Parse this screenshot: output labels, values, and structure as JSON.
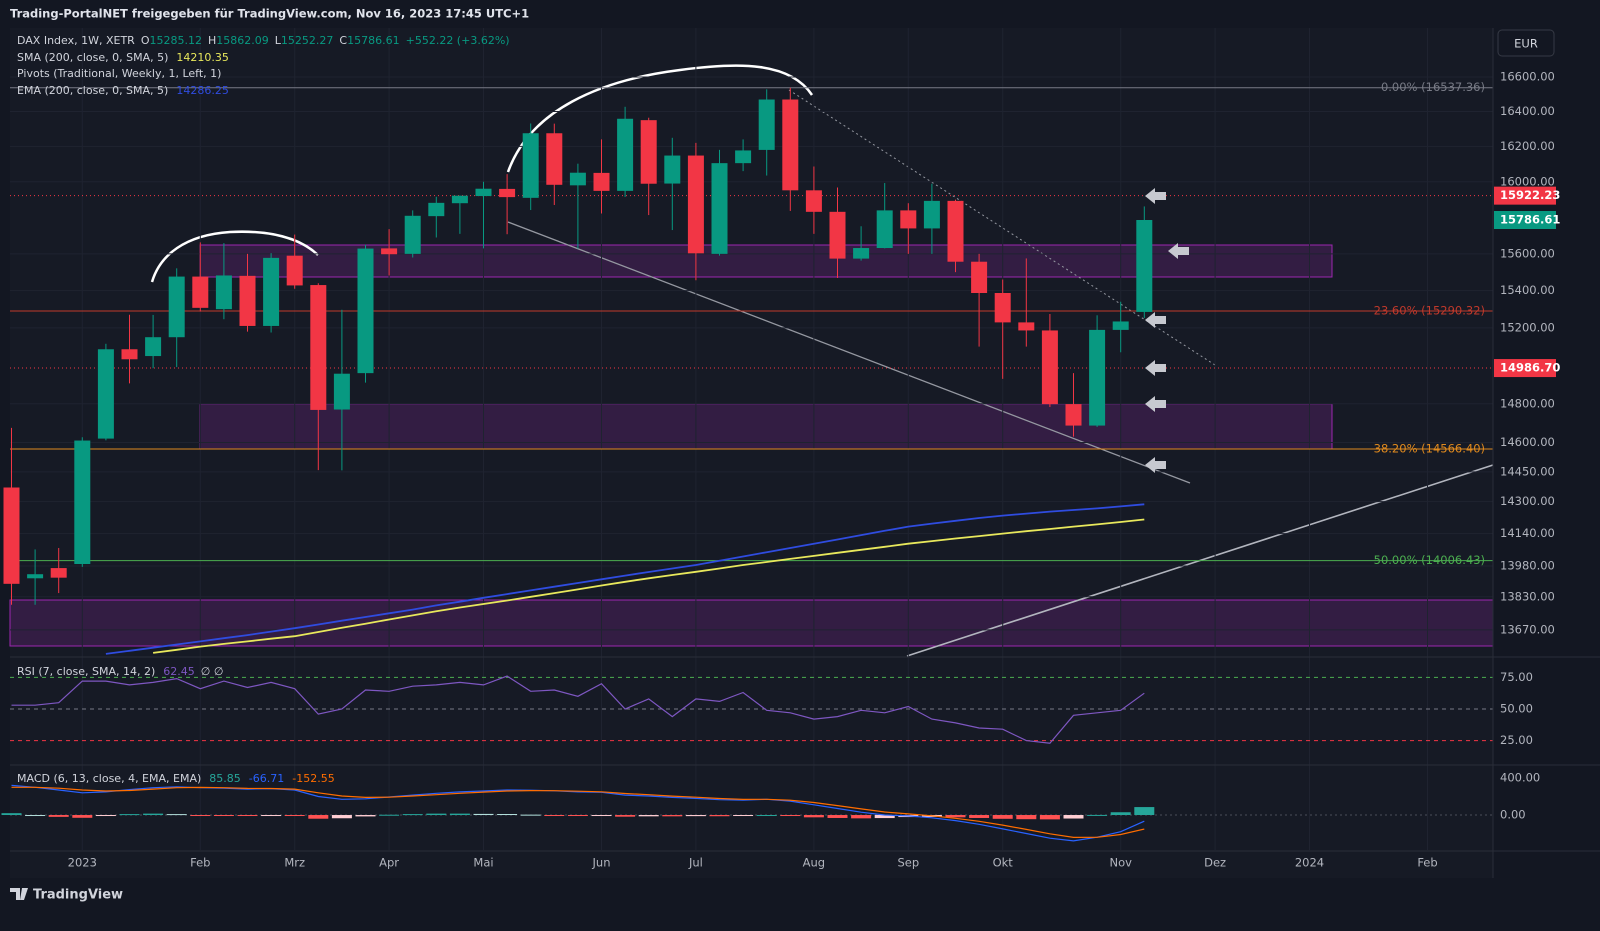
{
  "header": {
    "title": "Trading-PortalNET freigegeben für TradingView.com, Nov 16, 2023 17:45 UTC+1",
    "currency": "EUR",
    "footer": "TradingView"
  },
  "chart_data": {
    "type": "candlestick",
    "log_scale": true,
    "grid": true,
    "symbol": "DAX Index, 1W, XETR",
    "ohlc_labels": [
      "O",
      "H",
      "L",
      "C"
    ],
    "change": "+552.22 (+3.62%)",
    "pivots_label": "Pivots (Traditional, Weekly, 1, Left, 1)",
    "up_color": "#089981",
    "down_color": "#f23645",
    "ylim": [
      13550,
      16876
    ],
    "yticks": [
      {
        "value": 16600,
        "label": "16600.00"
      },
      {
        "value": 16400,
        "label": "16400.00"
      },
      {
        "value": 16200,
        "label": "16200.00"
      },
      {
        "value": 16000,
        "label": "16000.00"
      },
      {
        "value": 15600,
        "label": "15600.00"
      },
      {
        "value": 15400,
        "label": "15400.00"
      },
      {
        "value": 15200,
        "label": "15200.00"
      },
      {
        "value": 14800,
        "label": "14800.00"
      },
      {
        "value": 14600,
        "label": "14600.00"
      },
      {
        "value": 14450,
        "label": "14450.00"
      },
      {
        "value": 14300,
        "label": "14300.00"
      },
      {
        "value": 14140,
        "label": "14140.00"
      },
      {
        "value": 13980,
        "label": "13980.00"
      },
      {
        "value": 13830,
        "label": "13830.00"
      },
      {
        "value": 13670,
        "label": "13670.00"
      }
    ],
    "categories": [
      null,
      null,
      null,
      "2023",
      null,
      null,
      null,
      null,
      "Feb",
      null,
      null,
      null,
      "Mrz",
      null,
      null,
      null,
      "Apr",
      null,
      null,
      null,
      "Mai",
      null,
      null,
      null,
      null,
      "Jun",
      null,
      null,
      null,
      "Jul",
      null,
      null,
      null,
      null,
      "Aug",
      null,
      null,
      null,
      "Sep",
      null,
      null,
      null,
      "Okt",
      null,
      null,
      null,
      null,
      "Nov",
      null,
      null,
      null,
      "Dez",
      null,
      null,
      null,
      "2024",
      null,
      null,
      null,
      null,
      "Feb",
      null,
      null
    ],
    "open": [
      14371,
      13920,
      13970,
      13990,
      14620,
      15086,
      15050,
      15150,
      15476,
      15300,
      15480,
      15210,
      15590,
      15430,
      14770,
      14960,
      15630,
      15600,
      15808,
      15880,
      15920,
      15960,
      15910,
      16275,
      15980,
      16050,
      15949,
      16350,
      15990,
      16148,
      15600,
      16105,
      16180,
      16469,
      15952,
      15832,
      15574,
      15632,
      15840,
      15740,
      15893,
      15557,
      15387,
      15229,
      15186,
      14798,
      14687,
      15189,
      15285.12,
      null,
      null,
      null,
      null,
      null,
      null,
      null,
      null,
      null,
      null,
      null,
      null,
      null,
      null
    ],
    "high": [
      14675,
      14062,
      14069,
      14627,
      15115,
      15270,
      15269,
      15521,
      15663,
      15659,
      15600,
      15604,
      15706,
      15440,
      15297,
      15650,
      15736,
      15840,
      15916,
      15922,
      16000,
      16043,
      16331,
      16330,
      16102,
      16240,
      16427,
      16364,
      16249,
      16220,
      16180,
      16240,
      16528,
      16537,
      16086,
      15968,
      15752,
      15993,
      15880,
      15989,
      15900,
      15600,
      15460,
      15575,
      15274,
      14960,
      15267,
      15340,
      15862.09,
      null,
      null,
      null,
      null,
      null,
      null,
      null,
      null,
      null,
      null,
      null,
      null,
      null,
      null
    ],
    "low": [
      13791,
      13791,
      13848,
      13976,
      14611,
      14906,
      14986,
      14992,
      15287,
      15246,
      15180,
      15175,
      15410,
      14459,
      14458,
      14910,
      15482,
      15580,
      15690,
      15710,
      15630,
      15708,
      15842,
      15870,
      15629,
      15823,
      15915,
      15814,
      15731,
      15456,
      15590,
      16060,
      16035,
      15837,
      15710,
      15468,
      15563,
      15630,
      15600,
      15600,
      15500,
      15100,
      14930,
      15100,
      14783,
      14630,
      14680,
      15070,
      15252.27,
      null,
      null,
      null,
      null,
      null,
      null,
      null,
      null,
      null,
      null,
      null,
      null,
      null,
      null
    ],
    "close": [
      13893,
      13940,
      13923,
      14610,
      15086,
      15033,
      15150,
      15476,
      15307,
      15482,
      15210,
      15578,
      15428,
      14768,
      14957,
      15629,
      15598,
      15810,
      15882,
      15922,
      15961,
      15914,
      16275,
      15983,
      16051,
      15949,
      16358,
      15989,
      16148,
      15603,
      16105,
      16177,
      16469,
      15952,
      15832,
      15574,
      15632,
      15840,
      15740,
      15893,
      15557,
      15387,
      15229,
      15186,
      14798,
      14687,
      15189,
      15234,
      15786.61,
      null,
      null,
      null,
      null,
      null,
      null,
      null,
      null,
      null,
      null,
      null,
      null,
      null,
      null
    ],
    "series": [
      {
        "name": "SMA (200, close, 0, SMA, 5)",
        "color": "#e8e85c",
        "values": [
          null,
          null,
          null,
          null,
          null,
          null,
          13560,
          13575,
          13590,
          13603,
          13615,
          13628,
          13640,
          13660,
          13680,
          13700,
          13720,
          13740,
          13760,
          13778,
          13795,
          13812,
          13830,
          13848,
          13866,
          13885,
          13903,
          13920,
          13936,
          13952,
          13968,
          13985,
          14000,
          14015,
          14030,
          14045,
          14060,
          14075,
          14090,
          14103,
          14116,
          14128,
          14140,
          14152,
          14163,
          14175,
          14186,
          14198,
          14210.35,
          null,
          null,
          null,
          null,
          null,
          null,
          null,
          null,
          null,
          null,
          null,
          null,
          null,
          null
        ]
      },
      {
        "name": "EMA (200, close, 0, SMA, 5)",
        "color": "#2f4ce0",
        "values": [
          null,
          null,
          null,
          null,
          13555,
          13570,
          13585,
          13600,
          13615,
          13630,
          13645,
          13662,
          13678,
          13696,
          13714,
          13732,
          13750,
          13768,
          13788,
          13806,
          13825,
          13843,
          13861,
          13879,
          13897,
          13915,
          13933,
          13951,
          13968,
          13985,
          14006,
          14027,
          14048,
          14069,
          14090,
          14111,
          14133,
          14154,
          14175,
          14190,
          14204,
          14218,
          14230,
          14240,
          14250,
          14258,
          14266,
          14276,
          14286.25,
          null,
          null,
          null,
          null,
          null,
          null,
          null,
          null,
          null,
          null,
          null,
          null,
          null,
          null
        ]
      }
    ],
    "fib_levels": [
      {
        "value": 16537.36,
        "label": "0.00% (16537.36)",
        "color": "#787b86"
      },
      {
        "value": 15290.32,
        "label": "23.60% (15290.32)",
        "color": "#c0392b"
      },
      {
        "value": 14566.4,
        "label": "38.20% (14566.40)",
        "color": "#e08a1e"
      },
      {
        "value": 14006.43,
        "label": "50.00% (14006.43)",
        "color": "#4caf50"
      }
    ],
    "price_lines": [
      {
        "value": 15922.23,
        "color": "#f23645"
      },
      {
        "value": 14986.7,
        "label": "14986.70",
        "color": "#f23645"
      }
    ],
    "rsi": {
      "name": "RSI (7, close, SMA, 14, 2)",
      "extra": "∅ ∅",
      "color": "#7e57c2",
      "ylim": [
        9.7,
        88.7
      ],
      "yticks": [
        {
          "value": 75,
          "label": "75.00",
          "color": "#4caf50"
        },
        {
          "value": 50,
          "label": "50.00",
          "color": "#787b86"
        },
        {
          "value": 25,
          "label": "25.00",
          "color": "#f23645"
        }
      ],
      "values": [
        53,
        53,
        55,
        72,
        72,
        69,
        71,
        74,
        66,
        72,
        67,
        71,
        66,
        46,
        50,
        65,
        64,
        68,
        69,
        71,
        69,
        76,
        64,
        65,
        60,
        70,
        50,
        58,
        44,
        58,
        56,
        63,
        49,
        47,
        42,
        44,
        49,
        47,
        52,
        42,
        39,
        35,
        34,
        25,
        23,
        45,
        47,
        49,
        62.45,
        null,
        null,
        null,
        null,
        null,
        null,
        null,
        null,
        null,
        null,
        null,
        null,
        null,
        null
      ]
    },
    "macd": {
      "name": "MACD (6, 13, close, 4, EMA, EMA)",
      "ylim": [
        -378,
        508
      ],
      "yticks": [
        {
          "value": 400,
          "label": "400.00"
        },
        {
          "value": 0,
          "label": "0.00"
        }
      ],
      "histogram": {
        "color": "#26a69a",
        "values": [
          20,
          0,
          -20,
          -30,
          -10,
          10,
          15,
          10,
          -3,
          -5,
          -8,
          -1,
          -10,
          -40,
          -35,
          -15,
          3,
          10,
          15,
          15,
          12,
          11,
          4,
          -1,
          -7,
          -6,
          -18,
          -14,
          -14,
          -12,
          -13,
          -9,
          0,
          -10,
          -25,
          -32,
          -36,
          -33,
          -22,
          -21,
          -25,
          -32,
          -41,
          -45,
          -47,
          -38,
          1,
          30,
          85.85,
          null,
          null,
          null,
          null,
          null,
          null,
          null,
          null,
          null,
          null,
          null,
          null,
          null,
          null
        ]
      },
      "macd_line": {
        "color": "#2962ff",
        "values": [
          320,
          300,
          270,
          240,
          250,
          275,
          295,
          305,
          295,
          290,
          280,
          285,
          270,
          200,
          170,
          175,
          195,
          215,
          235,
          250,
          260,
          270,
          268,
          262,
          250,
          245,
          215,
          205,
          190,
          180,
          165,
          160,
          170,
          150,
          110,
          70,
          30,
          0,
          -10,
          -30,
          -60,
          -100,
          -150,
          -200,
          -250,
          -280,
          -240,
          -180,
          -66.71,
          null,
          null,
          null,
          null,
          null,
          null,
          null,
          null,
          null,
          null,
          null,
          null,
          null,
          null
        ]
      },
      "signal_line": {
        "color": "#ff6d00",
        "values": [
          300,
          300,
          290,
          270,
          260,
          265,
          280,
          295,
          298,
          295,
          288,
          286,
          280,
          240,
          205,
          190,
          192,
          205,
          220,
          235,
          248,
          259,
          264,
          263,
          257,
          251,
          233,
          219,
          204,
          192,
          178,
          169,
          170,
          160,
          135,
          102,
          66,
          33,
          12,
          -9,
          -35,
          -68,
          -109,
          -155,
          -203,
          -242,
          -241,
          -210,
          -152.55,
          null,
          null,
          null,
          null,
          null,
          null,
          null,
          null,
          null,
          null,
          null,
          null,
          null,
          null
        ]
      }
    }
  }
}
